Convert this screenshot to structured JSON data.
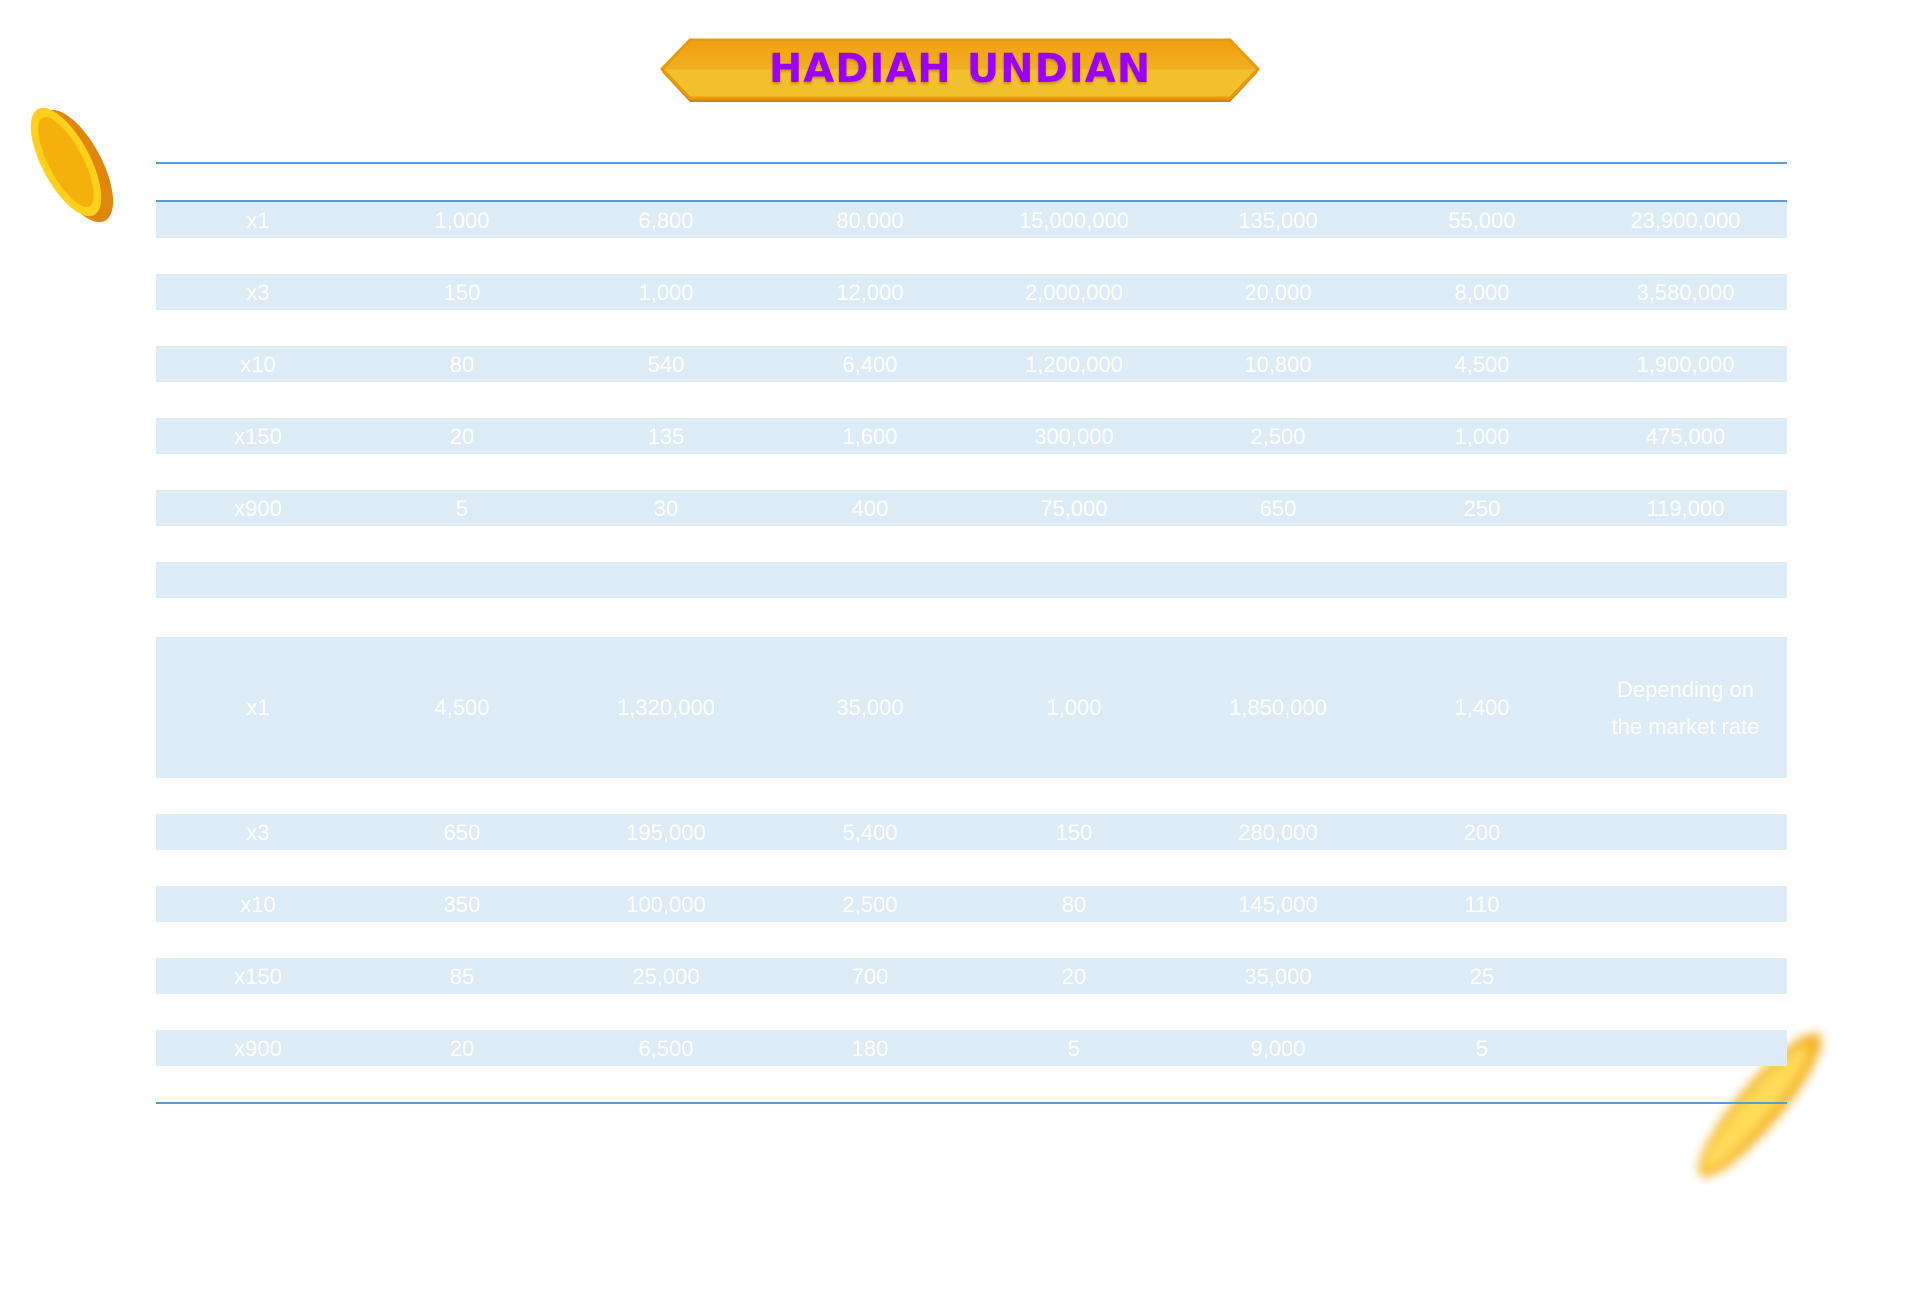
{
  "title": "HADIAH UNDIAN",
  "colors": {
    "banner": "#f0b020",
    "title": "#9b00ff",
    "band": "#ddebf7",
    "rule": "#5b9bd5"
  },
  "icons": {
    "coin_top_left": "gold-coin-icon",
    "coin_bottom_right": "gold-coin-icon"
  },
  "section1": [
    [
      "x1",
      "1,000",
      "6,800",
      "80,000",
      "15,000,000",
      "135,000",
      "55,000",
      "23,900,000"
    ],
    [
      "x3",
      "150",
      "1,000",
      "12,000",
      "2,000,000",
      "20,000",
      "8,000",
      "3,580,000"
    ],
    [
      "x10",
      "80",
      "540",
      "6,400",
      "1,200,000",
      "10,800",
      "4,500",
      "1,900,000"
    ],
    [
      "x150",
      "20",
      "135",
      "1,600",
      "300,000",
      "2,500",
      "1,000",
      "475,000"
    ],
    [
      "x900",
      "5",
      "30",
      "400",
      "75,000",
      "650",
      "250",
      "119,000"
    ]
  ],
  "section2": [
    [
      "x1",
      "4,500",
      "1,320,000",
      "35,000",
      "1,000",
      "1,850,000",
      "1,400",
      "Depending on the market rate"
    ],
    [
      "x3",
      "650",
      "195,000",
      "5,400",
      "150",
      "280,000",
      "200",
      ""
    ],
    [
      "x10",
      "350",
      "100,000",
      "2,500",
      "80",
      "145,000",
      "110",
      ""
    ],
    [
      "x150",
      "85",
      "25,000",
      "700",
      "20",
      "35,000",
      "25",
      ""
    ],
    [
      "x900",
      "20",
      "6,500",
      "180",
      "5",
      "9,000",
      "5",
      ""
    ]
  ]
}
